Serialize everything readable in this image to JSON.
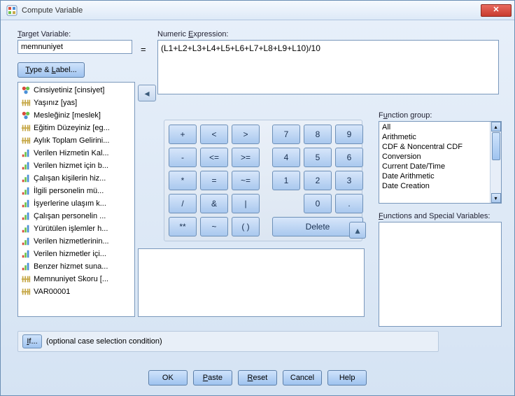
{
  "window": {
    "title": "Compute Variable",
    "close_glyph": "✕"
  },
  "target": {
    "label": "Target Variable:",
    "value": "memnuniyet",
    "equals": "=",
    "type_label_btn": "Type & Label..."
  },
  "expression": {
    "label": "Numeric Expression:",
    "value": "(L1+L2+L3+L4+L5+L6+L7+L8+L9+L10)/10"
  },
  "move_arrow": "◂",
  "variables": [
    {
      "icon": "nominal",
      "label": "Cinsiyetiniz [cinsiyet]"
    },
    {
      "icon": "scale",
      "label": "Yaşınız [yas]"
    },
    {
      "icon": "nominal",
      "label": "Mesleğiniz [meslek]"
    },
    {
      "icon": "scale",
      "label": "Eğitim Düzeyiniz [eg..."
    },
    {
      "icon": "scale",
      "label": "Aylık Toplam Gelirini..."
    },
    {
      "icon": "ordinal",
      "label": "Verilen Hizmetin Kal..."
    },
    {
      "icon": "ordinal",
      "label": "Verilen hizmet için b..."
    },
    {
      "icon": "ordinal",
      "label": "Çalışan kişilerin hiz..."
    },
    {
      "icon": "ordinal",
      "label": "İlgili personelin mü..."
    },
    {
      "icon": "ordinal",
      "label": "İşyerlerine ulaşım k..."
    },
    {
      "icon": "ordinal",
      "label": "Çalışan personelin ..."
    },
    {
      "icon": "ordinal",
      "label": "Yürütülen işlemler h..."
    },
    {
      "icon": "ordinal",
      "label": "Verilen hizmetlerinin..."
    },
    {
      "icon": "ordinal",
      "label": "Verilen hizmetler içi..."
    },
    {
      "icon": "ordinal",
      "label": "Benzer hizmet suna..."
    },
    {
      "icon": "scale",
      "label": "Memnuniyet Skoru [..."
    },
    {
      "icon": "scale",
      "label": "VAR00001"
    }
  ],
  "keypad": {
    "rows": [
      [
        "+",
        "<",
        ">",
        "",
        "7",
        "8",
        "9"
      ],
      [
        "-",
        "<=",
        ">=",
        "",
        "4",
        "5",
        "6"
      ],
      [
        "*",
        "=",
        "~=",
        "",
        "1",
        "2",
        "3"
      ],
      [
        "/",
        "&",
        "|",
        "",
        "",
        "0",
        "."
      ],
      [
        "**",
        "~",
        "( )",
        "",
        "Delete",
        "",
        ""
      ]
    ]
  },
  "function_group": {
    "label": "Function group:",
    "items": [
      "All",
      "Arithmetic",
      "CDF & Noncentral CDF",
      "Conversion",
      "Current Date/Time",
      "Date Arithmetic",
      "Date Creation"
    ]
  },
  "special": {
    "label": "Functions and Special Variables:"
  },
  "up_arrow": "▴",
  "if_panel": {
    "btn": "If...",
    "text": "(optional case selection condition)"
  },
  "buttons": {
    "ok": "OK",
    "paste": "Paste",
    "reset": "Reset",
    "cancel": "Cancel",
    "help": "Help"
  },
  "colors": {
    "border": "#7a98bc",
    "btn_top": "#cfe3fb",
    "btn_bot": "#9fc3ef"
  }
}
